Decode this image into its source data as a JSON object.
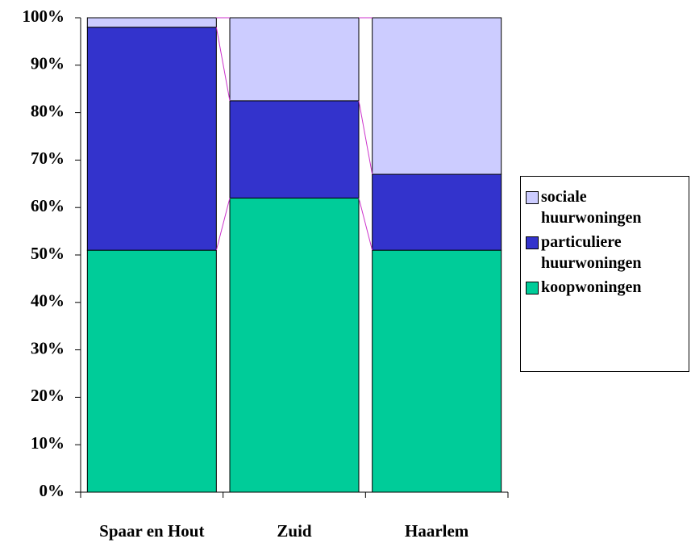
{
  "chart_data": {
    "type": "stacked_bar",
    "categories": [
      "Spaar en Hout",
      "Zuid",
      "Haarlem"
    ],
    "series": [
      {
        "name": "koopwoningen",
        "color": "#00cc99",
        "values": [
          51,
          62,
          51
        ]
      },
      {
        "name": "particuliere huurwoningen",
        "color": "#3333cc",
        "values": [
          47,
          20.5,
          16
        ]
      },
      {
        "name": "sociale huurwoningen",
        "color": "#ccccff",
        "values": [
          2,
          17.5,
          33
        ]
      }
    ],
    "ylim": [
      0,
      100
    ],
    "yticks": [
      {
        "value": 0,
        "label": "0%"
      },
      {
        "value": 10,
        "label": "10%"
      },
      {
        "value": 20,
        "label": "20%"
      },
      {
        "value": 30,
        "label": "30%"
      },
      {
        "value": 40,
        "label": "40%"
      },
      {
        "value": 50,
        "label": "50%"
      },
      {
        "value": 60,
        "label": "60%"
      },
      {
        "value": 70,
        "label": "70%"
      },
      {
        "value": 80,
        "label": "80%"
      },
      {
        "value": 90,
        "label": "90%"
      },
      {
        "value": 100,
        "label": "100%"
      }
    ],
    "series_lines": true,
    "series_line_color": "#cc33cc",
    "legend": "right"
  }
}
